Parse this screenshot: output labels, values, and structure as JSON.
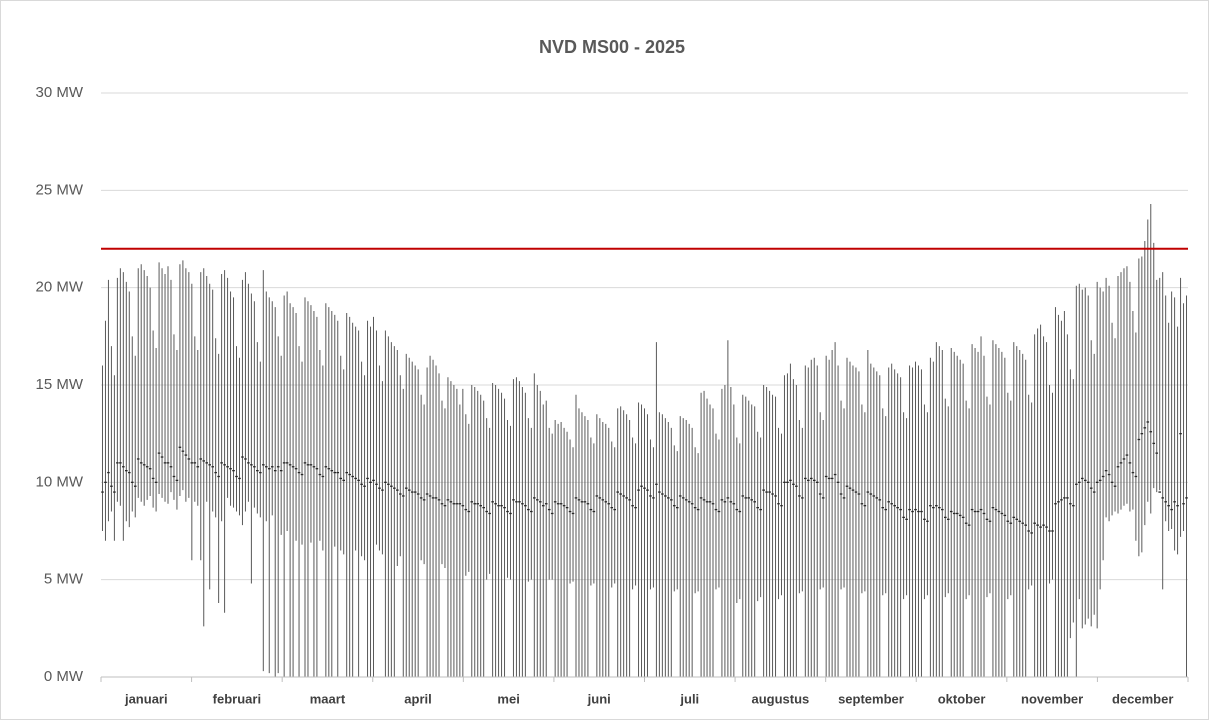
{
  "chart_data": {
    "type": "hilo",
    "title": "NVD MS00 - 2025",
    "categories": [
      "januari",
      "februari",
      "maart",
      "april",
      "mei",
      "juni",
      "juli",
      "augustus",
      "september",
      "oktober",
      "november",
      "december"
    ],
    "color": "#595959",
    "grid": true,
    "reference_line": 22,
    "reference_color": "#c00000",
    "ylim": [
      0,
      30
    ],
    "yticks": [
      {
        "value": 0,
        "label": "0 MW"
      },
      {
        "value": 5,
        "label": "5 MW"
      },
      {
        "value": 10,
        "label": "10 MW"
      },
      {
        "value": 15,
        "label": "15 MW"
      },
      {
        "value": 20,
        "label": "20 MW"
      },
      {
        "value": 25,
        "label": "25 MW"
      },
      {
        "value": 30,
        "label": "30 MW"
      }
    ],
    "high": [
      16,
      18.3,
      20.4,
      17,
      15.5,
      20.5,
      21,
      20.8,
      20.3,
      19.8,
      17.5,
      16.5,
      21,
      21.2,
      20.9,
      20.6,
      20,
      17.8,
      16.9,
      21.3,
      21,
      20.7,
      21.1,
      20.4,
      17.6,
      16.8,
      21.2,
      21.4,
      21,
      20.8,
      20.2,
      17.5,
      16.8,
      20.8,
      21,
      20.6,
      20.2,
      19.9,
      17.4,
      16.6,
      20.7,
      20.9,
      20.5,
      19.8,
      19.5,
      17,
      16.4,
      20.4,
      20.8,
      20.2,
      19.7,
      19.3,
      17.2,
      16.2,
      20.9,
      19.8,
      19.5,
      19.3,
      19,
      17.5,
      16.5,
      19.6,
      19.8,
      19.2,
      19,
      18.7,
      17,
      16.2,
      19.5,
      19.3,
      19.1,
      18.8,
      18.5,
      16.8,
      16,
      19.2,
      19,
      18.8,
      18.6,
      18.3,
      16.5,
      15.8,
      18.7,
      18.5,
      18.2,
      18,
      17.8,
      16.2,
      15.5,
      18.3,
      18,
      18.5,
      17.8,
      16,
      15.2,
      17.8,
      17.5,
      17.2,
      17,
      16.8,
      15.5,
      14.8,
      16.6,
      16.4,
      16.2,
      16,
      15.8,
      14.5,
      14,
      15.9,
      16.5,
      16.3,
      16,
      15.6,
      14.2,
      13.8,
      15.4,
      15.2,
      15,
      14.8,
      14,
      14.8,
      13.5,
      13,
      15,
      14.9,
      14.7,
      14.5,
      14.2,
      13.3,
      12.8,
      15.1,
      15,
      14.8,
      14.6,
      14.3,
      13.2,
      12.9,
      15.3,
      15.4,
      15.2,
      14.9,
      14.6,
      13.3,
      12.8,
      15.6,
      15,
      14.7,
      14,
      14.2,
      12.8,
      12.5,
      13.2,
      13,
      13.1,
      12.8,
      12.6,
      12.2,
      11.8,
      14.5,
      13.8,
      13.6,
      13.4,
      13.2,
      12.3,
      12,
      13.5,
      13.3,
      13.1,
      13,
      12.8,
      12.1,
      11.8,
      13.8,
      13.9,
      13.7,
      13.5,
      13.2,
      12.3,
      12,
      14.1,
      14,
      13.8,
      13.5,
      12.2,
      11.8,
      17.2,
      13.6,
      13.5,
      13.3,
      13.1,
      12.8,
      11.9,
      11.6,
      13.4,
      13.3,
      13.2,
      13,
      12.8,
      11.8,
      11.5,
      14.6,
      14.7,
      14.3,
      14,
      13.8,
      12.5,
      12.2,
      14.8,
      15,
      17.3,
      14.9,
      14,
      12.3,
      12,
      14.5,
      14.4,
      14.2,
      14,
      13.9,
      12.6,
      12.3,
      15,
      14.9,
      14.7,
      14.5,
      14.4,
      12.8,
      12.5,
      15.5,
      15.6,
      16.1,
      15.3,
      15,
      13.2,
      12.8,
      16,
      15.9,
      16.3,
      16.4,
      16,
      13.6,
      13.2,
      16.5,
      16.3,
      16.8,
      17.2,
      16,
      14.2,
      13.8,
      16.4,
      16.2,
      16,
      15.9,
      15.7,
      14,
      13.6,
      16.8,
      16.1,
      15.9,
      15.7,
      15.5,
      13.8,
      13.4,
      15.9,
      16.1,
      15.8,
      15.6,
      15.4,
      13.6,
      13.3,
      16,
      15.9,
      16.2,
      16,
      15.8,
      14,
      13.6,
      16.4,
      16.2,
      17.2,
      17,
      16.8,
      14.3,
      13.9,
      16.9,
      16.7,
      16.5,
      16.3,
      16.1,
      14.2,
      13.8,
      17.1,
      16.9,
      16.7,
      17.5,
      16.5,
      14.4,
      14,
      17.3,
      17.1,
      16.9,
      16.7,
      16.4,
      14.6,
      14.2,
      17.2,
      17,
      16.8,
      16.6,
      16.3,
      14.5,
      14.1,
      17.6,
      17.9,
      18.1,
      17.5,
      17.2,
      15,
      14.6,
      19,
      18.6,
      18.3,
      18.8,
      17.6,
      15.8,
      15.3,
      20.1,
      20.2,
      19.9,
      20,
      19.6,
      17.3,
      16.6,
      20.3,
      20,
      19.8,
      20.5,
      20.1,
      18.2,
      17.4,
      20.6,
      20.8,
      21,
      21.1,
      20.3,
      18.8,
      17.7,
      21.5,
      21.6,
      22.4,
      23.5,
      24.3,
      22.3,
      20.4,
      20.5,
      20.8,
      19.6,
      18.2,
      19.8,
      19.5,
      18,
      20.5,
      19.2,
      19.6
    ],
    "low": [
      7.5,
      7,
      8,
      8.5,
      7,
      9,
      8.8,
      7,
      8,
      7.7,
      8.5,
      8.2,
      9.2,
      9,
      8.8,
      9.1,
      9.3,
      8.7,
      8.5,
      9.4,
      9.2,
      9,
      8.9,
      9.5,
      9.1,
      8.6,
      9.3,
      9.6,
      9,
      9.2,
      6,
      9,
      8.8,
      6,
      2.6,
      9,
      4.5,
      8.5,
      8.2,
      3.8,
      8,
      3.3,
      9.2,
      8.8,
      8.7,
      8.5,
      8.3,
      7.8,
      8.5,
      9,
      4.8,
      8.7,
      8.4,
      8.2,
      0.3,
      8,
      0.2,
      8.3,
      0,
      0.2,
      7.3,
      0,
      7.5,
      0,
      0,
      7,
      0,
      6.8,
      0,
      0,
      6.9,
      0,
      0,
      7,
      6.5,
      0,
      0,
      0,
      6.7,
      0,
      6.5,
      6.3,
      0,
      0,
      0,
      6.5,
      0,
      6.2,
      6,
      0,
      0,
      0,
      6.8,
      6.5,
      6.3,
      0,
      0,
      0,
      0,
      5.7,
      6.2,
      0,
      0,
      0,
      0,
      0,
      0,
      6,
      5.8,
      0,
      0,
      0,
      0,
      0,
      5.8,
      5.6,
      0,
      0,
      0,
      0,
      0,
      0,
      5.2,
      5.4,
      0,
      0,
      0,
      0,
      0,
      5,
      5.3,
      0,
      0,
      0,
      0,
      0,
      5.1,
      5,
      0,
      0,
      0,
      0,
      0,
      4.9,
      5,
      0,
      0,
      0,
      0,
      0,
      5,
      5,
      0,
      0,
      0,
      0,
      0,
      4.8,
      4.9,
      0,
      0,
      0,
      0,
      0,
      4.7,
      4.8,
      0,
      0,
      0,
      0,
      0,
      4.6,
      4.8,
      0,
      0,
      0,
      0,
      0,
      4.5,
      4.7,
      0,
      0,
      0,
      0,
      4.5,
      4.6,
      0,
      0,
      0,
      0,
      0,
      0,
      4.4,
      4.5,
      0,
      0,
      0,
      0,
      0,
      4.3,
      4.4,
      0,
      0,
      0,
      0,
      0,
      4.5,
      4.6,
      0,
      0,
      0,
      0,
      0,
      3.8,
      4,
      0,
      0,
      0,
      0,
      0,
      3.9,
      4.1,
      0,
      0,
      0,
      0,
      0,
      4,
      4.2,
      0,
      0,
      0,
      0,
      0,
      4.3,
      4.4,
      0,
      0,
      0,
      0,
      0,
      4.5,
      4.6,
      0,
      0,
      0,
      0,
      0,
      4.5,
      4.6,
      0,
      0,
      0,
      0,
      0,
      4.3,
      4.4,
      0,
      0,
      0,
      0,
      0,
      4.2,
      4.3,
      0,
      0,
      0,
      0,
      0,
      4,
      4.2,
      0,
      0,
      0,
      0,
      0,
      4,
      4.2,
      0,
      0,
      0,
      0,
      0,
      4.1,
      4.3,
      0,
      0,
      0,
      0,
      0,
      4,
      4.2,
      0,
      0,
      0,
      0,
      0,
      4.1,
      4.3,
      0,
      0,
      0,
      0,
      0,
      4,
      4.2,
      0,
      0,
      0,
      0,
      0,
      4.5,
      4.7,
      0,
      0,
      0,
      0,
      0,
      4.8,
      5,
      0,
      0,
      0,
      0,
      0,
      2,
      2.8,
      0,
      4,
      2.5,
      2.7,
      3,
      2.6,
      3.2,
      2.5,
      4.5,
      6,
      8.2,
      8,
      8.3,
      8.5,
      8.4,
      8.6,
      8.8,
      8.9,
      8.5,
      8.6,
      7,
      6.2,
      6.4,
      7.8,
      9,
      8.4,
      9.7,
      9.5,
      9.6,
      4.5,
      8,
      7.5,
      7.6,
      6.5,
      6.3,
      7.2,
      7.5,
      0
    ],
    "mean": [
      9.5,
      10,
      10.5,
      9.8,
      9.5,
      11,
      11,
      10.8,
      10.6,
      10.5,
      10,
      9.8,
      11.2,
      11,
      10.9,
      10.8,
      10.7,
      10.2,
      10,
      11.5,
      11.3,
      11,
      11,
      10.8,
      10.3,
      10.1,
      11.8,
      11.6,
      11.4,
      11.2,
      11,
      11,
      10.8,
      11.2,
      11.1,
      11,
      10.9,
      10.8,
      10.5,
      10.3,
      11,
      10.9,
      10.8,
      10.7,
      10.6,
      10.3,
      10.2,
      11.3,
      11.2,
      11,
      10.9,
      10.8,
      10.6,
      10.5,
      10.9,
      10.8,
      10.7,
      10.8,
      10.6,
      10.8,
      10.6,
      11,
      11,
      10.9,
      10.8,
      10.7,
      10.5,
      10.4,
      11,
      10.9,
      10.9,
      10.8,
      10.7,
      10.4,
      10.3,
      10.8,
      10.7,
      10.6,
      10.5,
      10.5,
      10.2,
      10.1,
      10.5,
      10.4,
      10.3,
      10.2,
      10.1,
      9.9,
      9.8,
      10.2,
      10,
      10.1,
      9.9,
      9.7,
      9.6,
      10,
      9.9,
      9.8,
      9.7,
      9.6,
      9.4,
      9.3,
      9.7,
      9.6,
      9.5,
      9.5,
      9.4,
      9.2,
      9.1,
      9.4,
      9.3,
      9.2,
      9.2,
      9.1,
      8.9,
      8.8,
      9.1,
      9,
      8.9,
      8.9,
      8.9,
      8.8,
      8.6,
      8.5,
      9,
      8.9,
      8.9,
      8.8,
      8.7,
      8.5,
      8.4,
      9,
      8.9,
      8.8,
      8.8,
      8.7,
      8.5,
      8.4,
      9.1,
      9,
      9,
      8.9,
      8.8,
      8.6,
      8.5,
      9.2,
      9.1,
      9,
      8.8,
      8.9,
      8.6,
      8.4,
      9,
      8.9,
      8.9,
      8.8,
      8.7,
      8.5,
      8.4,
      9.2,
      9.1,
      9,
      9,
      8.9,
      8.6,
      8.5,
      9.3,
      9.2,
      9.1,
      9,
      8.9,
      8.7,
      8.6,
      9.5,
      9.4,
      9.3,
      9.2,
      9.1,
      8.8,
      8.7,
      9.6,
      9.8,
      9.7,
      9.6,
      9.3,
      9.2,
      9.9,
      9.5,
      9.4,
      9.3,
      9.2,
      9.1,
      8.8,
      8.7,
      9.3,
      9.2,
      9.1,
      9,
      8.9,
      8.7,
      8.6,
      9.2,
      9.1,
      9,
      9,
      8.9,
      8.6,
      8.5,
      9.1,
      9,
      9.2,
      9,
      8.9,
      8.6,
      8.5,
      9.3,
      9.2,
      9.2,
      9.1,
      9,
      8.7,
      8.6,
      9.6,
      9.5,
      9.5,
      9.4,
      9.3,
      8.9,
      8.8,
      10,
      10,
      10.1,
      9.9,
      9.8,
      9.3,
      9.2,
      10.2,
      10.1,
      10.2,
      10.1,
      10,
      9.4,
      9.2,
      10.3,
      10.2,
      10.2,
      10.4,
      10,
      9.4,
      9.2,
      9.8,
      9.7,
      9.6,
      9.5,
      9.4,
      8.9,
      8.8,
      9.5,
      9.4,
      9.3,
      9.2,
      9.1,
      8.7,
      8.6,
      9,
      8.9,
      8.8,
      8.7,
      8.6,
      8.2,
      8.1,
      8.6,
      8.5,
      8.6,
      8.5,
      8.5,
      8.1,
      8,
      8.8,
      8.7,
      8.8,
      8.7,
      8.6,
      8.2,
      8.1,
      8.5,
      8.4,
      8.4,
      8.3,
      8.2,
      7.9,
      7.8,
      8.6,
      8.5,
      8.5,
      8.6,
      8.4,
      8.1,
      8,
      8.7,
      8.6,
      8.5,
      8.4,
      8.3,
      8,
      7.9,
      8.2,
      8.1,
      8,
      7.9,
      7.8,
      7.5,
      7.4,
      7.9,
      7.8,
      7.7,
      7.8,
      7.7,
      7.5,
      7.5,
      8.9,
      9,
      9.1,
      9.2,
      9.2,
      8.9,
      8.8,
      9.9,
      10,
      10.2,
      10.1,
      10,
      9.7,
      9.5,
      10,
      10.1,
      10.3,
      10.6,
      10.4,
      10,
      9.8,
      10.8,
      11,
      11.2,
      11.4,
      11,
      10.5,
      10.3,
      12.2,
      12.5,
      12.8,
      13.1,
      12.6,
      12,
      11.5,
      9.5,
      9.2,
      9,
      8.8,
      8.6,
      9,
      8.8,
      12.5,
      8.9,
      9.2
    ]
  }
}
